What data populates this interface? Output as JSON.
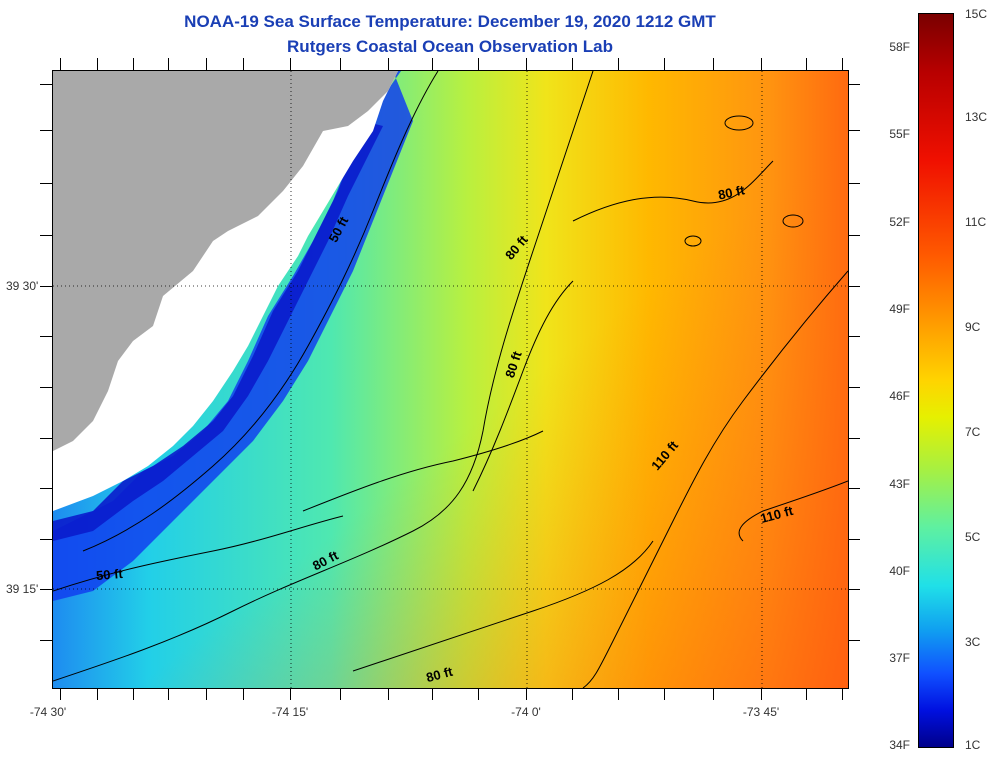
{
  "title": "NOAA-19 Sea Surface Temperature:  December 19, 2020 1212 GMT",
  "subtitle": "Rutgers Coastal Ocean Observation Lab",
  "x_labels": [
    "-74 30'",
    "-74 15'",
    "-74 0'",
    "-73 45'"
  ],
  "y_labels": [
    "39 30'",
    "39 15'"
  ],
  "colorbar": {
    "fahrenheit": [
      "58F",
      "55F",
      "52F",
      "49F",
      "46F",
      "43F",
      "40F",
      "37F",
      "34F"
    ],
    "celsius": [
      "15C",
      "13C",
      "11C",
      "9C",
      "7C",
      "5C",
      "3C",
      "1C"
    ]
  },
  "contour_labels": [
    "50 ft",
    "80 ft",
    "80 ft",
    "80 ft",
    "80 ft",
    "110 ft",
    "110 ft",
    "50 ft",
    "80 ft"
  ],
  "colors": {
    "title": "#1a3fb5",
    "land": "#a9a9a9",
    "contour": "#000000"
  }
}
